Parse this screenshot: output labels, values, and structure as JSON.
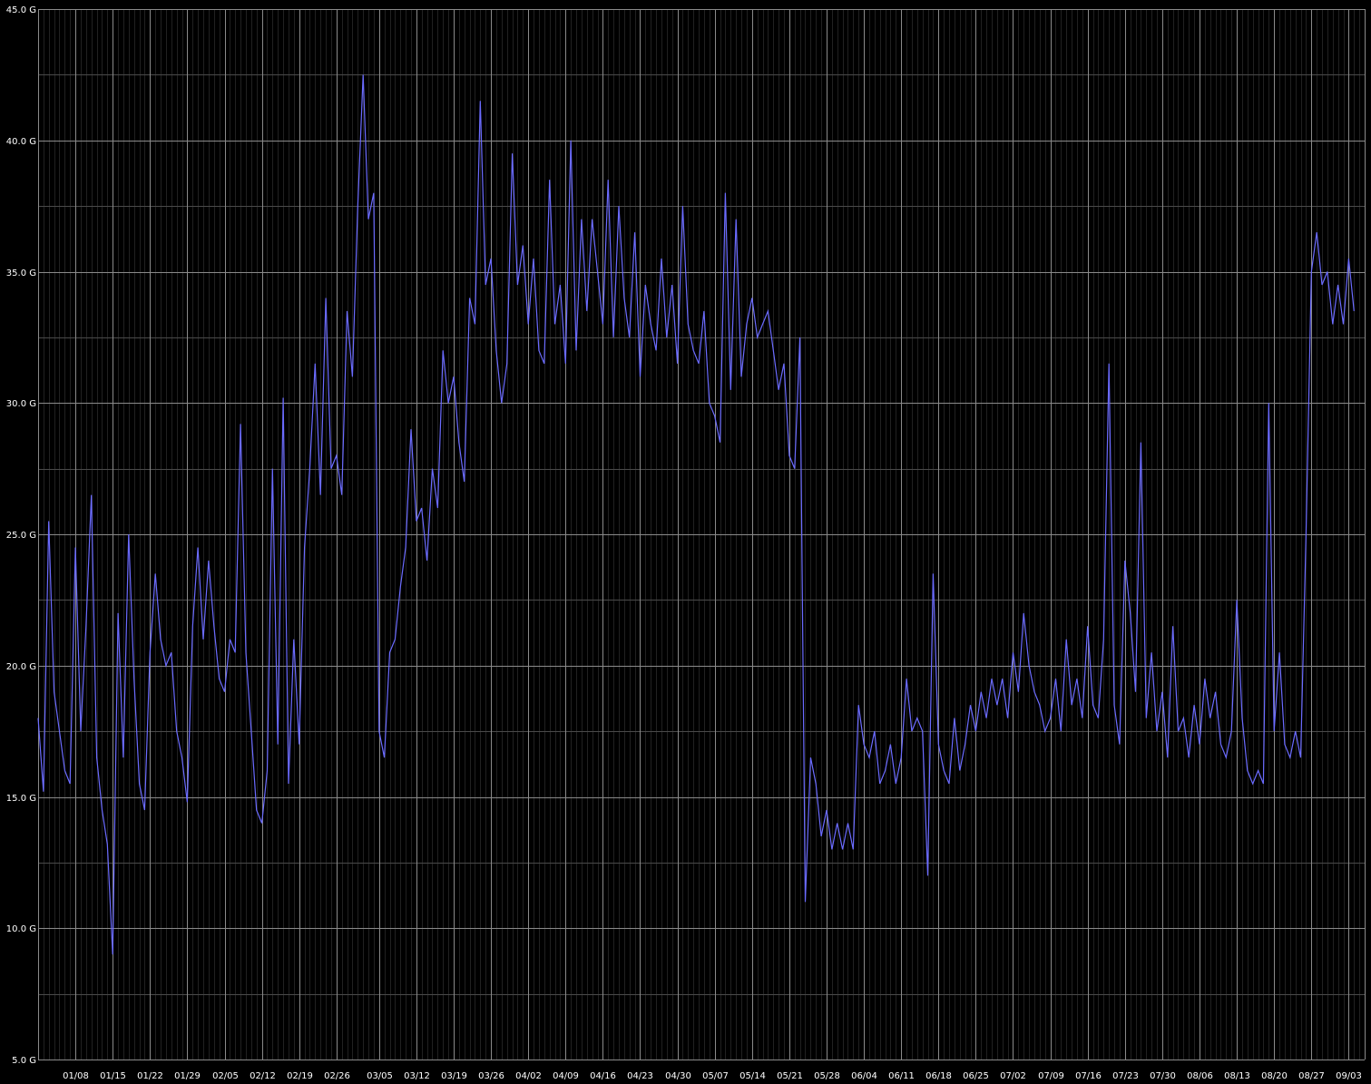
{
  "chart_data": {
    "type": "line",
    "title": "",
    "xlabel": "",
    "ylabel": "",
    "ylim": [
      5.0,
      45.0
    ],
    "y_ticks": [
      {
        "value": 5.0,
        "label": "5.0 G"
      },
      {
        "value": 10.0,
        "label": "10.0 G"
      },
      {
        "value": 15.0,
        "label": "15.0 G"
      },
      {
        "value": 20.0,
        "label": "20.0 G"
      },
      {
        "value": 25.0,
        "label": "25.0 G"
      },
      {
        "value": 30.0,
        "label": "30.0 G"
      },
      {
        "value": 35.0,
        "label": "35.0 G"
      },
      {
        "value": 40.0,
        "label": "40.0 G"
      },
      {
        "value": 45.0,
        "label": "45.0 G"
      }
    ],
    "x_range": [
      "01/01",
      "09/06"
    ],
    "x_ticks": [
      "01/08",
      "01/15",
      "01/22",
      "01/29",
      "02/05",
      "02/12",
      "02/19",
      "02/26",
      "03/05",
      "03/12",
      "03/19",
      "03/26",
      "04/02",
      "04/09",
      "04/16",
      "04/23",
      "04/30",
      "05/07",
      "05/14",
      "05/21",
      "05/28",
      "06/04",
      "06/11",
      "06/18",
      "06/25",
      "07/02",
      "07/09",
      "07/16",
      "07/23",
      "07/30",
      "08/06",
      "08/13",
      "08/20",
      "08/27",
      "09/03"
    ],
    "grid": true,
    "colors": {
      "background": "#000000",
      "line": "#6b6bff",
      "grid_major": "#8a8a8a",
      "grid_minor": "#4a4a4a",
      "text": "#ffffff"
    },
    "series": [
      {
        "values": [
          [
            "01/01",
            18.0
          ],
          [
            "01/02",
            15.2
          ],
          [
            "01/03",
            25.5
          ],
          [
            "01/04",
            19.0
          ],
          [
            "01/05",
            17.5
          ],
          [
            "01/06",
            16.0
          ],
          [
            "01/07",
            15.5
          ],
          [
            "01/08",
            24.5
          ],
          [
            "01/09",
            17.5
          ],
          [
            "01/10",
            21.5
          ],
          [
            "01/11",
            26.5
          ],
          [
            "01/12",
            16.5
          ],
          [
            "01/13",
            14.5
          ],
          [
            "01/14",
            13.2
          ],
          [
            "01/15",
            9.0
          ],
          [
            "01/16",
            22.0
          ],
          [
            "01/17",
            16.5
          ],
          [
            "01/18",
            25.0
          ],
          [
            "01/19",
            19.5
          ],
          [
            "01/20",
            15.5
          ],
          [
            "01/21",
            14.5
          ],
          [
            "01/22",
            20.5
          ],
          [
            "01/23",
            23.5
          ],
          [
            "01/24",
            21.0
          ],
          [
            "01/25",
            20.0
          ],
          [
            "01/26",
            20.5
          ],
          [
            "01/27",
            17.5
          ],
          [
            "01/28",
            16.5
          ],
          [
            "01/29",
            14.8
          ],
          [
            "01/30",
            21.5
          ],
          [
            "01/31",
            24.5
          ],
          [
            "02/01",
            21.0
          ],
          [
            "02/02",
            24.0
          ],
          [
            "02/03",
            21.5
          ],
          [
            "02/04",
            19.5
          ],
          [
            "02/05",
            19.0
          ],
          [
            "02/06",
            21.0
          ],
          [
            "02/07",
            20.5
          ],
          [
            "02/08",
            29.2
          ],
          [
            "02/09",
            20.5
          ],
          [
            "02/10",
            17.5
          ],
          [
            "02/11",
            14.5
          ],
          [
            "02/12",
            14.0
          ],
          [
            "02/13",
            16.0
          ],
          [
            "02/14",
            27.5
          ],
          [
            "02/15",
            17.0
          ],
          [
            "02/16",
            30.2
          ],
          [
            "02/17",
            15.5
          ],
          [
            "02/18",
            21.0
          ],
          [
            "02/19",
            17.0
          ],
          [
            "02/20",
            24.5
          ],
          [
            "02/21",
            27.5
          ],
          [
            "02/22",
            31.5
          ],
          [
            "02/23",
            26.5
          ],
          [
            "02/24",
            34.0
          ],
          [
            "02/25",
            27.5
          ],
          [
            "02/26",
            28.0
          ],
          [
            "02/27",
            26.5
          ],
          [
            "02/28",
            33.5
          ],
          [
            "02/29",
            31.0
          ],
          [
            "03/01",
            37.5
          ],
          [
            "03/02",
            42.5
          ],
          [
            "03/03",
            37.0
          ],
          [
            "03/04",
            38.0
          ],
          [
            "03/05",
            17.5
          ],
          [
            "03/06",
            16.5
          ],
          [
            "03/07",
            20.5
          ],
          [
            "03/08",
            21.0
          ],
          [
            "03/09",
            23.0
          ],
          [
            "03/10",
            24.5
          ],
          [
            "03/11",
            29.0
          ],
          [
            "03/12",
            25.5
          ],
          [
            "03/13",
            26.0
          ],
          [
            "03/14",
            24.0
          ],
          [
            "03/15",
            27.5
          ],
          [
            "03/16",
            26.0
          ],
          [
            "03/17",
            32.0
          ],
          [
            "03/18",
            30.0
          ],
          [
            "03/19",
            31.0
          ],
          [
            "03/20",
            28.5
          ],
          [
            "03/21",
            27.0
          ],
          [
            "03/22",
            34.0
          ],
          [
            "03/23",
            33.0
          ],
          [
            "03/24",
            41.5
          ],
          [
            "03/25",
            34.5
          ],
          [
            "03/26",
            35.5
          ],
          [
            "03/27",
            32.0
          ],
          [
            "03/28",
            30.0
          ],
          [
            "03/29",
            31.5
          ],
          [
            "03/30",
            39.5
          ],
          [
            "03/31",
            34.5
          ],
          [
            "04/01",
            36.0
          ],
          [
            "04/02",
            33.0
          ],
          [
            "04/03",
            35.5
          ],
          [
            "04/04",
            32.0
          ],
          [
            "04/05",
            31.5
          ],
          [
            "04/06",
            38.5
          ],
          [
            "04/07",
            33.0
          ],
          [
            "04/08",
            34.5
          ],
          [
            "04/09",
            31.5
          ],
          [
            "04/10",
            40.0
          ],
          [
            "04/11",
            32.0
          ],
          [
            "04/12",
            37.0
          ],
          [
            "04/13",
            33.5
          ],
          [
            "04/14",
            37.0
          ],
          [
            "04/15",
            35.0
          ],
          [
            "04/16",
            33.0
          ],
          [
            "04/17",
            38.5
          ],
          [
            "04/18",
            32.5
          ],
          [
            "04/19",
            37.5
          ],
          [
            "04/20",
            34.0
          ],
          [
            "04/21",
            32.5
          ],
          [
            "04/22",
            36.5
          ],
          [
            "04/23",
            31.0
          ],
          [
            "04/24",
            34.5
          ],
          [
            "04/25",
            33.0
          ],
          [
            "04/26",
            32.0
          ],
          [
            "04/27",
            35.5
          ],
          [
            "04/28",
            32.5
          ],
          [
            "04/29",
            34.5
          ],
          [
            "04/30",
            31.5
          ],
          [
            "05/01",
            37.5
          ],
          [
            "05/02",
            33.0
          ],
          [
            "05/03",
            32.0
          ],
          [
            "05/04",
            31.5
          ],
          [
            "05/05",
            33.5
          ],
          [
            "05/06",
            30.0
          ],
          [
            "05/07",
            29.5
          ],
          [
            "05/08",
            28.5
          ],
          [
            "05/09",
            38.0
          ],
          [
            "05/10",
            30.5
          ],
          [
            "05/11",
            37.0
          ],
          [
            "05/12",
            31.0
          ],
          [
            "05/13",
            33.0
          ],
          [
            "05/14",
            34.0
          ],
          [
            "05/15",
            32.5
          ],
          [
            "05/16",
            33.0
          ],
          [
            "05/17",
            33.5
          ],
          [
            "05/18",
            32.0
          ],
          [
            "05/19",
            30.5
          ],
          [
            "05/20",
            31.5
          ],
          [
            "05/21",
            28.0
          ],
          [
            "05/22",
            27.5
          ],
          [
            "05/23",
            32.5
          ],
          [
            "05/24",
            11.0
          ],
          [
            "05/25",
            16.5
          ],
          [
            "05/26",
            15.5
          ],
          [
            "05/27",
            13.5
          ],
          [
            "05/28",
            14.5
          ],
          [
            "05/29",
            13.0
          ],
          [
            "05/30",
            14.0
          ],
          [
            "05/31",
            13.0
          ],
          [
            "06/01",
            14.0
          ],
          [
            "06/02",
            13.0
          ],
          [
            "06/03",
            18.5
          ],
          [
            "06/04",
            17.0
          ],
          [
            "06/05",
            16.5
          ],
          [
            "06/06",
            17.5
          ],
          [
            "06/07",
            15.5
          ],
          [
            "06/08",
            16.0
          ],
          [
            "06/09",
            17.0
          ],
          [
            "06/10",
            15.5
          ],
          [
            "06/11",
            16.5
          ],
          [
            "06/12",
            19.5
          ],
          [
            "06/13",
            17.5
          ],
          [
            "06/14",
            18.0
          ],
          [
            "06/15",
            17.5
          ],
          [
            "06/16",
            12.0
          ],
          [
            "06/17",
            23.5
          ],
          [
            "06/18",
            17.0
          ],
          [
            "06/19",
            16.0
          ],
          [
            "06/20",
            15.5
          ],
          [
            "06/21",
            18.0
          ],
          [
            "06/22",
            16.0
          ],
          [
            "06/23",
            17.0
          ],
          [
            "06/24",
            18.5
          ],
          [
            "06/25",
            17.5
          ],
          [
            "06/26",
            19.0
          ],
          [
            "06/27",
            18.0
          ],
          [
            "06/28",
            19.5
          ],
          [
            "06/29",
            18.5
          ],
          [
            "06/30",
            19.5
          ],
          [
            "07/01",
            18.0
          ],
          [
            "07/02",
            20.5
          ],
          [
            "07/03",
            19.0
          ],
          [
            "07/04",
            22.0
          ],
          [
            "07/05",
            20.0
          ],
          [
            "07/06",
            19.0
          ],
          [
            "07/07",
            18.5
          ],
          [
            "07/08",
            17.5
          ],
          [
            "07/09",
            18.0
          ],
          [
            "07/10",
            19.5
          ],
          [
            "07/11",
            17.5
          ],
          [
            "07/12",
            21.0
          ],
          [
            "07/13",
            18.5
          ],
          [
            "07/14",
            19.5
          ],
          [
            "07/15",
            18.0
          ],
          [
            "07/16",
            21.5
          ],
          [
            "07/17",
            18.5
          ],
          [
            "07/18",
            18.0
          ],
          [
            "07/19",
            21.0
          ],
          [
            "07/20",
            31.5
          ],
          [
            "07/21",
            18.5
          ],
          [
            "07/22",
            17.0
          ],
          [
            "07/23",
            24.0
          ],
          [
            "07/24",
            22.0
          ],
          [
            "07/25",
            19.0
          ],
          [
            "07/26",
            28.5
          ],
          [
            "07/27",
            18.0
          ],
          [
            "07/28",
            20.5
          ],
          [
            "07/29",
            17.5
          ],
          [
            "07/30",
            19.0
          ],
          [
            "07/31",
            16.5
          ],
          [
            "08/01",
            21.5
          ],
          [
            "08/02",
            17.5
          ],
          [
            "08/03",
            18.0
          ],
          [
            "08/04",
            16.5
          ],
          [
            "08/05",
            18.5
          ],
          [
            "08/06",
            17.0
          ],
          [
            "08/07",
            19.5
          ],
          [
            "08/08",
            18.0
          ],
          [
            "08/09",
            19.0
          ],
          [
            "08/10",
            17.0
          ],
          [
            "08/11",
            16.5
          ],
          [
            "08/12",
            17.5
          ],
          [
            "08/13",
            22.5
          ],
          [
            "08/14",
            18.0
          ],
          [
            "08/15",
            16.0
          ],
          [
            "08/16",
            15.5
          ],
          [
            "08/17",
            16.0
          ],
          [
            "08/18",
            15.5
          ],
          [
            "08/19",
            30.0
          ],
          [
            "08/20",
            17.5
          ],
          [
            "08/21",
            20.5
          ],
          [
            "08/22",
            17.0
          ],
          [
            "08/23",
            16.5
          ],
          [
            "08/24",
            17.5
          ],
          [
            "08/25",
            16.5
          ],
          [
            "08/26",
            25.0
          ],
          [
            "08/27",
            35.0
          ],
          [
            "08/28",
            36.5
          ],
          [
            "08/29",
            34.5
          ],
          [
            "08/30",
            35.0
          ],
          [
            "08/31",
            33.0
          ],
          [
            "09/01",
            34.5
          ],
          [
            "09/02",
            33.0
          ],
          [
            "09/03",
            35.5
          ],
          [
            "09/04",
            33.5
          ]
        ]
      }
    ]
  }
}
